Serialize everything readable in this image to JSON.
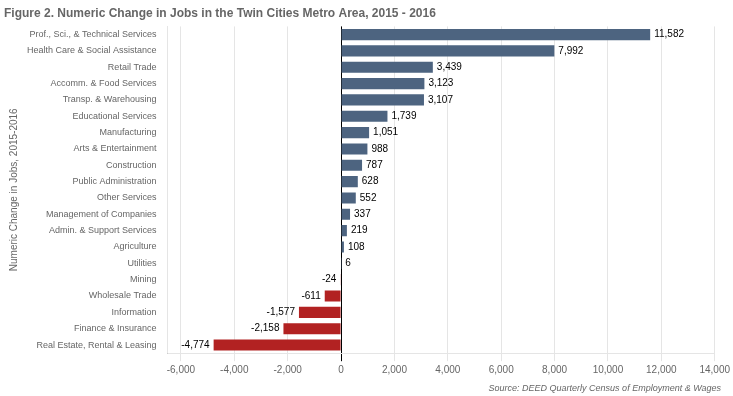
{
  "chart_data": {
    "type": "bar",
    "orientation": "horizontal",
    "title": "Figure 2. Numeric Change in Jobs in the Twin Cities Metro Area, 2015 - 2016",
    "ylabel": "Numeric Change in Jobs, 2015-2016",
    "annotations": [
      "Source: DEED Quarterly Census of Employment & Wages"
    ],
    "categories": [
      "Real Estate, Rental & Leasing",
      "Finance & Insurance",
      "Information",
      "Wholesale Trade",
      "Mining",
      "Utilities",
      "Agriculture",
      "Admin. & Support Services",
      "Management of Companies",
      "Other Services",
      "Public Administration",
      "Construction",
      "Arts & Entertainment",
      "Manufacturing",
      "Educational Services",
      "Transp. & Warehousing",
      "Accomm. & Food Services",
      "Retail Trade",
      "Health Care & Social Assistance",
      "Prof., Sci., & Technical Services"
    ],
    "values": [
      -4774,
      -2158,
      -1577,
      -611,
      -24,
      6,
      108,
      219,
      337,
      552,
      628,
      787,
      988,
      1051,
      1739,
      3107,
      3123,
      3439,
      7992,
      11582
    ],
    "value_labels": [
      "-4,774",
      "-2,158",
      "-1,577",
      "-611",
      "-24",
      "6",
      "108",
      "219",
      "337",
      "552",
      "628",
      "787",
      "988",
      "1,051",
      "1,739",
      "3,107",
      "3,123",
      "3,439",
      "7,992",
      "11,582"
    ],
    "colors": [
      "#b22222",
      "#b22222",
      "#b22222",
      "#b22222",
      "#b22222",
      "#4d6480",
      "#4d6480",
      "#4d6480",
      "#4d6480",
      "#4d6480",
      "#4d6480",
      "#4d6480",
      "#4d6480",
      "#4d6480",
      "#4d6480",
      "#4d6480",
      "#4d6480",
      "#4d6480",
      "#4d6480",
      "#4d6480"
    ],
    "xlim": [
      -6500,
      14000
    ],
    "xticks": [
      {
        "value": -6000,
        "label": "-6,000"
      },
      {
        "value": -4000,
        "label": "-4,000"
      },
      {
        "value": -2000,
        "label": "-2,000"
      },
      0,
      {
        "value": 2000,
        "label": "2,000"
      },
      {
        "value": 4000,
        "label": "4,000"
      },
      {
        "value": 6000,
        "label": "6,000"
      },
      {
        "value": 8000,
        "label": "8,000"
      },
      {
        "value": 10000,
        "label": "10,000"
      },
      {
        "value": 12000,
        "label": "12,000"
      },
      {
        "value": 14000,
        "label": "14,000"
      }
    ],
    "grid": true,
    "data_labels": true
  }
}
